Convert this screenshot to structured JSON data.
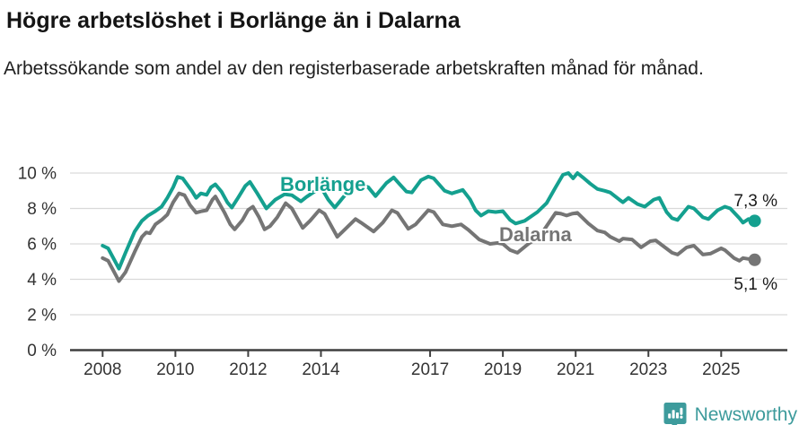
{
  "header": {
    "title": "Högre arbetslöshet i Borlänge än i Dalarna",
    "subtitle": "Arbetssökande som andel av den registerbaserade arbetskraften månad för månad."
  },
  "branding": {
    "name": "Newsworthy",
    "logo_icon": "speech-bubble-bar-chart-icon",
    "color": "#3d9b9c"
  },
  "chart_data": {
    "type": "line",
    "title": "Högre arbetslöshet i Borlänge än i Dalarna",
    "unit": "%",
    "grid": true,
    "legend_position": "inline-labels",
    "x_axis": {
      "tick_labels": [
        "2008",
        "2010",
        "2012",
        "2014",
        "2017",
        "2019",
        "2021",
        "2023",
        "2025"
      ],
      "tick_values": [
        2008,
        2010,
        2012,
        2014,
        2017,
        2019,
        2021,
        2023,
        2025
      ],
      "range": [
        2007.1,
        2026.8
      ]
    },
    "y_axis": {
      "tick_labels": [
        "0 %",
        "2 %",
        "4 %",
        "6 %",
        "8 %",
        "10 %"
      ],
      "tick_values": [
        0,
        2,
        4,
        6,
        8,
        10
      ],
      "range": [
        0,
        10.2
      ]
    },
    "series": [
      {
        "name": "Borlänge",
        "color": "#14a08f",
        "end_label": "7,3 %",
        "end_value": 7.3,
        "points": [
          [
            2008.0,
            5.9
          ],
          [
            2008.15,
            5.75
          ],
          [
            2008.45,
            4.6
          ],
          [
            2008.63,
            5.5
          ],
          [
            2008.88,
            6.7
          ],
          [
            2009.08,
            7.3
          ],
          [
            2009.25,
            7.6
          ],
          [
            2009.45,
            7.85
          ],
          [
            2009.62,
            8.1
          ],
          [
            2009.78,
            8.6
          ],
          [
            2009.94,
            9.2
          ],
          [
            2010.06,
            9.78
          ],
          [
            2010.2,
            9.7
          ],
          [
            2010.45,
            9.0
          ],
          [
            2010.57,
            8.6
          ],
          [
            2010.7,
            8.85
          ],
          [
            2010.86,
            8.77
          ],
          [
            2010.98,
            9.2
          ],
          [
            2011.1,
            9.36
          ],
          [
            2011.27,
            8.94
          ],
          [
            2011.43,
            8.34
          ],
          [
            2011.55,
            8.05
          ],
          [
            2011.72,
            8.6
          ],
          [
            2011.92,
            9.27
          ],
          [
            2012.05,
            9.5
          ],
          [
            2012.25,
            8.85
          ],
          [
            2012.5,
            8.0
          ],
          [
            2012.75,
            8.5
          ],
          [
            2013.0,
            8.8
          ],
          [
            2013.2,
            8.75
          ],
          [
            2013.45,
            8.4
          ],
          [
            2013.6,
            8.65
          ],
          [
            2014.0,
            9.2
          ],
          [
            2014.2,
            8.5
          ],
          [
            2014.38,
            8.05
          ],
          [
            2014.7,
            8.85
          ],
          [
            2014.85,
            9.0
          ],
          [
            2015.03,
            9.36
          ],
          [
            2015.3,
            9.2
          ],
          [
            2015.5,
            8.7
          ],
          [
            2015.8,
            9.44
          ],
          [
            2016.0,
            9.75
          ],
          [
            2016.15,
            9.4
          ],
          [
            2016.35,
            8.95
          ],
          [
            2016.5,
            8.9
          ],
          [
            2016.75,
            9.6
          ],
          [
            2016.95,
            9.8
          ],
          [
            2017.1,
            9.7
          ],
          [
            2017.4,
            9.0
          ],
          [
            2017.6,
            8.85
          ],
          [
            2017.9,
            9.05
          ],
          [
            2018.1,
            8.5
          ],
          [
            2018.25,
            7.9
          ],
          [
            2018.4,
            7.6
          ],
          [
            2018.6,
            7.85
          ],
          [
            2018.8,
            7.8
          ],
          [
            2019.0,
            7.85
          ],
          [
            2019.2,
            7.35
          ],
          [
            2019.35,
            7.15
          ],
          [
            2019.6,
            7.3
          ],
          [
            2019.95,
            7.8
          ],
          [
            2020.2,
            8.3
          ],
          [
            2020.45,
            9.2
          ],
          [
            2020.65,
            9.9
          ],
          [
            2020.8,
            10.0
          ],
          [
            2020.93,
            9.7
          ],
          [
            2021.05,
            10.0
          ],
          [
            2021.2,
            9.75
          ],
          [
            2021.4,
            9.4
          ],
          [
            2021.6,
            9.1
          ],
          [
            2021.8,
            9.0
          ],
          [
            2021.95,
            8.9
          ],
          [
            2022.2,
            8.5
          ],
          [
            2022.3,
            8.35
          ],
          [
            2022.45,
            8.6
          ],
          [
            2022.7,
            8.25
          ],
          [
            2022.9,
            8.1
          ],
          [
            2023.15,
            8.5
          ],
          [
            2023.3,
            8.6
          ],
          [
            2023.5,
            7.8
          ],
          [
            2023.65,
            7.45
          ],
          [
            2023.8,
            7.35
          ],
          [
            2024.1,
            8.1
          ],
          [
            2024.25,
            8.0
          ],
          [
            2024.5,
            7.5
          ],
          [
            2024.65,
            7.4
          ],
          [
            2024.9,
            7.9
          ],
          [
            2025.1,
            8.1
          ],
          [
            2025.25,
            8.0
          ],
          [
            2025.5,
            7.45
          ],
          [
            2025.6,
            7.2
          ],
          [
            2025.75,
            7.4
          ],
          [
            2025.92,
            7.3
          ]
        ]
      },
      {
        "name": "Dalarna",
        "color": "#757575",
        "end_label": "5,1 %",
        "end_value": 5.1,
        "points": [
          [
            2008.0,
            5.2
          ],
          [
            2008.15,
            5.05
          ],
          [
            2008.45,
            3.9
          ],
          [
            2008.63,
            4.4
          ],
          [
            2008.88,
            5.55
          ],
          [
            2009.08,
            6.4
          ],
          [
            2009.2,
            6.65
          ],
          [
            2009.3,
            6.6
          ],
          [
            2009.45,
            7.1
          ],
          [
            2009.62,
            7.35
          ],
          [
            2009.78,
            7.65
          ],
          [
            2009.94,
            8.35
          ],
          [
            2010.1,
            8.85
          ],
          [
            2010.25,
            8.75
          ],
          [
            2010.4,
            8.2
          ],
          [
            2010.57,
            7.76
          ],
          [
            2010.73,
            7.85
          ],
          [
            2010.86,
            7.9
          ],
          [
            2011.02,
            8.5
          ],
          [
            2011.1,
            8.68
          ],
          [
            2011.35,
            7.76
          ],
          [
            2011.51,
            7.1
          ],
          [
            2011.63,
            6.82
          ],
          [
            2011.84,
            7.33
          ],
          [
            2012.0,
            7.92
          ],
          [
            2012.13,
            8.1
          ],
          [
            2012.3,
            7.5
          ],
          [
            2012.45,
            6.82
          ],
          [
            2012.6,
            7.0
          ],
          [
            2012.8,
            7.5
          ],
          [
            2013.03,
            8.3
          ],
          [
            2013.2,
            8.0
          ],
          [
            2013.5,
            6.9
          ],
          [
            2013.7,
            7.3
          ],
          [
            2013.95,
            7.9
          ],
          [
            2014.1,
            7.7
          ],
          [
            2014.45,
            6.4
          ],
          [
            2014.6,
            6.7
          ],
          [
            2014.95,
            7.4
          ],
          [
            2015.1,
            7.2
          ],
          [
            2015.45,
            6.7
          ],
          [
            2015.7,
            7.2
          ],
          [
            2015.95,
            7.9
          ],
          [
            2016.1,
            7.75
          ],
          [
            2016.4,
            6.85
          ],
          [
            2016.6,
            7.1
          ],
          [
            2016.95,
            7.9
          ],
          [
            2017.1,
            7.8
          ],
          [
            2017.35,
            7.1
          ],
          [
            2017.6,
            7.0
          ],
          [
            2017.85,
            7.1
          ],
          [
            2018.05,
            6.8
          ],
          [
            2018.35,
            6.25
          ],
          [
            2018.65,
            6.0
          ],
          [
            2018.85,
            6.05
          ],
          [
            2019.0,
            6.0
          ],
          [
            2019.2,
            5.65
          ],
          [
            2019.4,
            5.5
          ],
          [
            2019.7,
            6.0
          ],
          [
            2020.0,
            6.4
          ],
          [
            2020.2,
            7.0
          ],
          [
            2020.45,
            7.75
          ],
          [
            2020.6,
            7.7
          ],
          [
            2020.75,
            7.6
          ],
          [
            2020.9,
            7.7
          ],
          [
            2021.05,
            7.75
          ],
          [
            2021.35,
            7.15
          ],
          [
            2021.6,
            6.75
          ],
          [
            2021.8,
            6.65
          ],
          [
            2021.95,
            6.4
          ],
          [
            2022.2,
            6.15
          ],
          [
            2022.3,
            6.3
          ],
          [
            2022.55,
            6.25
          ],
          [
            2022.8,
            5.8
          ],
          [
            2023.05,
            6.15
          ],
          [
            2023.2,
            6.2
          ],
          [
            2023.65,
            5.5
          ],
          [
            2023.8,
            5.4
          ],
          [
            2024.05,
            5.8
          ],
          [
            2024.25,
            5.9
          ],
          [
            2024.5,
            5.4
          ],
          [
            2024.7,
            5.45
          ],
          [
            2025.0,
            5.75
          ],
          [
            2025.1,
            5.65
          ],
          [
            2025.35,
            5.2
          ],
          [
            2025.5,
            5.05
          ],
          [
            2025.6,
            5.2
          ],
          [
            2025.75,
            5.15
          ],
          [
            2025.92,
            5.1
          ]
        ]
      }
    ]
  }
}
